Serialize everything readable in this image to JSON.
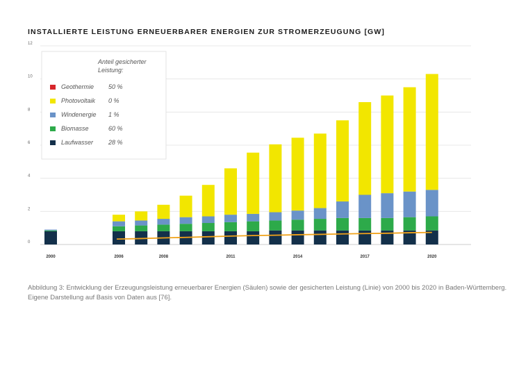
{
  "title": "INSTALLIERTE LEISTUNG ERNEUERBARER ENERGIEN ZUR STROMERZEUGUNG [GW]",
  "caption": "Abbildung 3: Entwicklung der Erzeugungsleistung erneuerbarer Energien (Säulen) sowie der gesicherten Leistung (Linie) von 2000 bis 2020 in Baden-Württemberg. Eigene Darstellung auf Basis von Daten aus [76].",
  "chart_data": {
    "type": "bar",
    "stacked": true,
    "ylim": [
      0,
      12
    ],
    "yticks": [
      "0",
      "2",
      "4",
      "6",
      "8",
      "10",
      "12"
    ],
    "categories": [
      "2000",
      "2006",
      "2007",
      "2008",
      "2009",
      "2010",
      "2011",
      "2012",
      "2013",
      "2014",
      "2015",
      "2016",
      "2017",
      "2018",
      "2019",
      "2020"
    ],
    "xtick_labels": [
      "2000",
      "2006",
      "",
      "2008",
      "",
      "",
      "2011",
      "",
      "",
      "2014",
      "",
      "",
      "2017",
      "",
      "",
      "2020"
    ],
    "legend": {
      "header": "Anteil gesicherter Leistung:",
      "position": "top-left"
    },
    "series": [
      {
        "name": "Laufwasser",
        "share": "28 %",
        "color": "#13304a",
        "values": [
          0.8,
          0.8,
          0.8,
          0.8,
          0.8,
          0.8,
          0.8,
          0.8,
          0.85,
          0.85,
          0.85,
          0.85,
          0.85,
          0.85,
          0.85,
          0.85
        ]
      },
      {
        "name": "Biomasse",
        "share": "60 %",
        "color": "#2daa4a",
        "values": [
          0.05,
          0.3,
          0.35,
          0.4,
          0.45,
          0.5,
          0.55,
          0.6,
          0.6,
          0.65,
          0.7,
          0.75,
          0.75,
          0.75,
          0.8,
          0.85
        ]
      },
      {
        "name": "Windenergie",
        "share": "1 %",
        "color": "#6a93c8",
        "values": [
          0.05,
          0.3,
          0.3,
          0.35,
          0.4,
          0.4,
          0.45,
          0.45,
          0.5,
          0.55,
          0.65,
          1.0,
          1.4,
          1.5,
          1.55,
          1.6
        ]
      },
      {
        "name": "Photovoltaik",
        "share": "0 %",
        "color": "#f2e600",
        "values": [
          0,
          0.4,
          0.55,
          0.85,
          1.3,
          1.9,
          2.8,
          3.7,
          4.1,
          4.4,
          4.5,
          4.9,
          5.6,
          5.9,
          6.3,
          7.0
        ]
      },
      {
        "name": "Geothermie",
        "share": "50 %",
        "color": "#d7262b",
        "values": [
          0,
          0,
          0,
          0,
          0,
          0,
          0,
          0,
          0,
          0,
          0,
          0,
          0,
          0,
          0,
          0
        ]
      }
    ],
    "line": {
      "label": "gesicherte Leistung",
      "color": "#f0a21a",
      "start": "2006",
      "values": [
        null,
        0.33,
        0.36,
        0.4,
        0.43,
        0.47,
        0.51,
        0.54,
        0.56,
        0.59,
        0.61,
        0.64,
        0.66,
        0.68,
        0.71,
        0.73
      ]
    }
  }
}
